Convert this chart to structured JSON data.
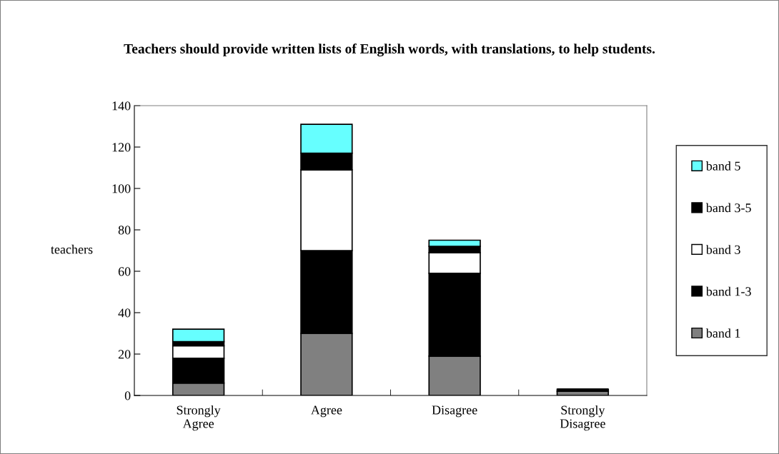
{
  "chart_data": {
    "type": "bar",
    "stacked": true,
    "title": "Teachers should provide written lists of English words, with translations, to help students.",
    "ylabel": "teachers",
    "categories": [
      "Strongly\nAgree",
      "Agree",
      "Disagree",
      "Strongly\nDisagree"
    ],
    "series": [
      {
        "name": "band 1",
        "color": "#808080",
        "values": [
          6,
          30,
          19,
          2
        ]
      },
      {
        "name": "band 1-3",
        "color": "#000000",
        "values": [
          12,
          40,
          40,
          1
        ]
      },
      {
        "name": "band 3",
        "color": "#ffffff",
        "values": [
          6,
          39,
          10,
          0
        ]
      },
      {
        "name": "band 3-5",
        "color": "#000000",
        "values": [
          2,
          8,
          3,
          0
        ]
      },
      {
        "name": "band 5",
        "color": "#66ffff",
        "values": [
          6,
          14,
          3,
          0
        ]
      }
    ],
    "ylim": [
      0,
      140
    ],
    "yticks": [
      0,
      20,
      40,
      60,
      80,
      100,
      120,
      140
    ],
    "grid": false,
    "legend": "right"
  }
}
